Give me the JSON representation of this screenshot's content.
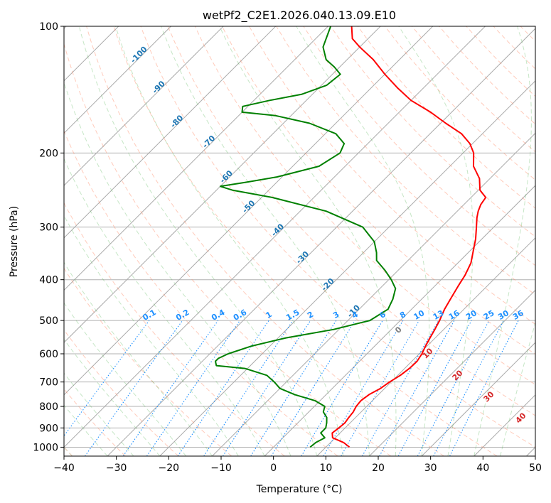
{
  "chart_data": {
    "type": "line",
    "title": "wetPf2_C2E1.2026.040.13.09.E10",
    "xlabel": "Temperature (°C)",
    "ylabel": "Pressure (hPa)",
    "x_scale": "skew-T",
    "y_scale": "log",
    "xlim": [
      -40,
      50
    ],
    "ylim": [
      1050,
      100
    ],
    "x_ticks": [
      -40,
      -30,
      -20,
      -10,
      0,
      10,
      20,
      30,
      40,
      50
    ],
    "y_ticks": [
      100,
      200,
      300,
      400,
      500,
      600,
      700,
      800,
      900,
      1000
    ],
    "grid": true,
    "series": [
      {
        "color": "#ff0000",
        "points": [
          [
            14.5,
            1000
          ],
          [
            12.5,
            975
          ],
          [
            9.5,
            950
          ],
          [
            8.5,
            925
          ],
          [
            8.8,
            900
          ],
          [
            9.0,
            875
          ],
          [
            8.7,
            850
          ],
          [
            8.5,
            825
          ],
          [
            8.0,
            800
          ],
          [
            7.8,
            775
          ],
          [
            8.2,
            750
          ],
          [
            9.2,
            725
          ],
          [
            9.7,
            700
          ],
          [
            10.5,
            675
          ],
          [
            10.9,
            650
          ],
          [
            11.0,
            625
          ],
          [
            10.5,
            600
          ],
          [
            9.7,
            575
          ],
          [
            9.0,
            550
          ],
          [
            8.3,
            525
          ],
          [
            7.5,
            500
          ],
          [
            6.3,
            470
          ],
          [
            5.5,
            445
          ],
          [
            4.5,
            415
          ],
          [
            3.7,
            390
          ],
          [
            2.5,
            365
          ],
          [
            0.5,
            340
          ],
          [
            -1.2,
            320
          ],
          [
            -3.3,
            300
          ],
          [
            -5.0,
            285
          ],
          [
            -6.0,
            275
          ],
          [
            -6.8,
            265
          ],
          [
            -7.2,
            255
          ],
          [
            -9.7,
            245
          ],
          [
            -12.0,
            230
          ],
          [
            -15.5,
            215
          ],
          [
            -18.0,
            200
          ],
          [
            -20.5,
            190
          ],
          [
            -24.0,
            180
          ],
          [
            -29.0,
            170
          ],
          [
            -34.0,
            160
          ],
          [
            -40.0,
            150
          ],
          [
            -45.0,
            140
          ],
          [
            -50.0,
            130
          ],
          [
            -55.0,
            120
          ],
          [
            -60.0,
            112
          ],
          [
            -63.0,
            107
          ],
          [
            -65.5,
            100
          ]
        ]
      },
      {
        "color": "#008000",
        "points": [
          [
            7.0,
            1000
          ],
          [
            7.2,
            975
          ],
          [
            8.0,
            950
          ],
          [
            6.3,
            925
          ],
          [
            6.3,
            900
          ],
          [
            5.5,
            875
          ],
          [
            4.5,
            850
          ],
          [
            2.8,
            825
          ],
          [
            2.0,
            800
          ],
          [
            -1.0,
            775
          ],
          [
            -6.0,
            750
          ],
          [
            -10.0,
            725
          ],
          [
            -12.3,
            700
          ],
          [
            -15.0,
            675
          ],
          [
            -20.5,
            650
          ],
          [
            -26.5,
            640
          ],
          [
            -27.5,
            625
          ],
          [
            -27.5,
            615
          ],
          [
            -26.5,
            600
          ],
          [
            -23.5,
            575
          ],
          [
            -18.5,
            550
          ],
          [
            -11.0,
            525
          ],
          [
            -5.8,
            500
          ],
          [
            -4.5,
            470
          ],
          [
            -5.5,
            445
          ],
          [
            -7.0,
            420
          ],
          [
            -9.5,
            400
          ],
          [
            -12.5,
            380
          ],
          [
            -16.0,
            360
          ],
          [
            -17.5,
            345
          ],
          [
            -20.0,
            325
          ],
          [
            -25.0,
            300
          ],
          [
            -35.0,
            275
          ],
          [
            -48.0,
            255
          ],
          [
            -57.0,
            245
          ],
          [
            -60.0,
            240
          ],
          [
            -56.0,
            235
          ],
          [
            -51.0,
            228
          ],
          [
            -45.0,
            215
          ],
          [
            -43.5,
            200
          ],
          [
            -44.5,
            190
          ],
          [
            -48.0,
            180
          ],
          [
            -55.0,
            170
          ],
          [
            -63.0,
            163
          ],
          [
            -70.0,
            160
          ],
          [
            -71.0,
            155
          ],
          [
            -67.0,
            150
          ],
          [
            -62.0,
            145
          ],
          [
            -59.0,
            138
          ],
          [
            -58.5,
            130
          ],
          [
            -61.0,
            125
          ],
          [
            -64.0,
            120
          ],
          [
            -67.0,
            112
          ],
          [
            -69.5,
            100
          ]
        ]
      }
    ],
    "isotherm_labels": [
      "-100",
      "-90",
      "-80",
      "-70",
      "-60",
      "-50",
      "-40",
      "-30",
      "-20",
      "-10"
    ],
    "mixing_ratio_labels": [
      "0.1",
      "0.2",
      "0.4",
      "0.6",
      "1",
      "1.5",
      "2",
      "3",
      "4",
      "6",
      "8",
      "10",
      "13",
      "16",
      "20",
      "25",
      "30",
      "36"
    ],
    "zero_isotherm_label": "0",
    "warm_isotherm_labels": [
      "10",
      "20",
      "30",
      "40"
    ],
    "colors": {
      "temperature": "#ff0000",
      "dewpoint": "#008000",
      "isotherm_label": "#1f77b4",
      "mixing_ratio": "#1e90ff",
      "warm_label": "#d62728",
      "zero_label": "#808080",
      "dry_adiabat": "#ff8c69",
      "moist_adiabat": "#5cb85c",
      "skewed_isotherm": "#999999"
    }
  }
}
